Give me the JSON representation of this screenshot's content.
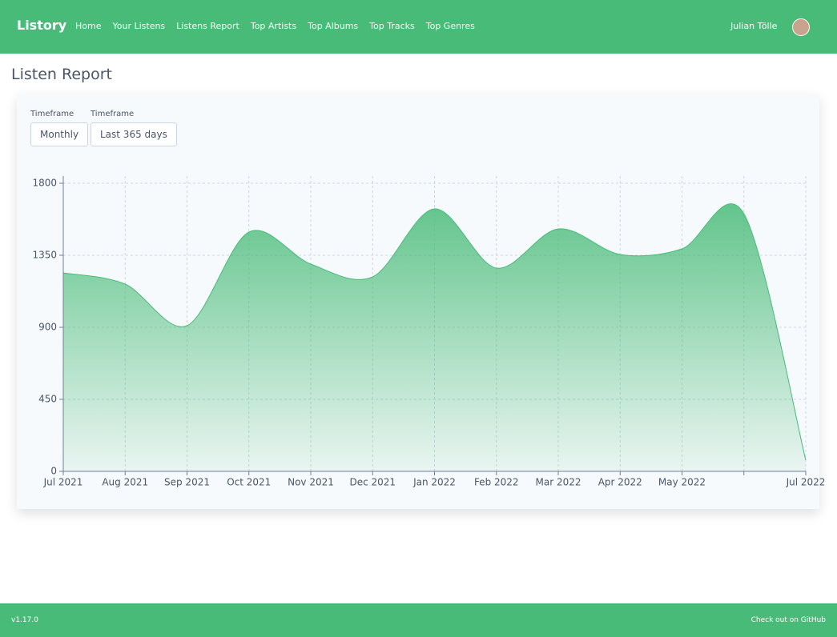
{
  "nav": {
    "brand": "Listory",
    "links": [
      "Home",
      "Your Listens",
      "Listens Report",
      "Top Artists",
      "Top Albums",
      "Top Tracks",
      "Top Genres"
    ],
    "user": "Julian Tölle"
  },
  "header": {
    "title": "Listen Report"
  },
  "filters": [
    {
      "label": "Timeframe",
      "value": "Monthly"
    },
    {
      "label": "Timeframe",
      "value": "Last 365 days"
    }
  ],
  "chart_data": {
    "type": "area",
    "categories": [
      "Jul 2021",
      "Aug 2021",
      "Sep 2021",
      "Oct 2021",
      "Nov 2021",
      "Dec 2021",
      "Jan 2022",
      "Feb 2022",
      "Mar 2022",
      "Apr 2022",
      "May 2022",
      null,
      "Jul 2022"
    ],
    "values": [
      1240,
      1170,
      910,
      1495,
      1295,
      1215,
      1640,
      1270,
      1515,
      1355,
      1390,
      1610,
      70
    ],
    "color": "#48bb78",
    "ylim": [
      0,
      1845
    ],
    "yticks": [
      0,
      450,
      900,
      1350,
      1800
    ],
    "grid": true
  },
  "footer": {
    "version": "v1.17.0",
    "link": "Check out on GitHub"
  }
}
